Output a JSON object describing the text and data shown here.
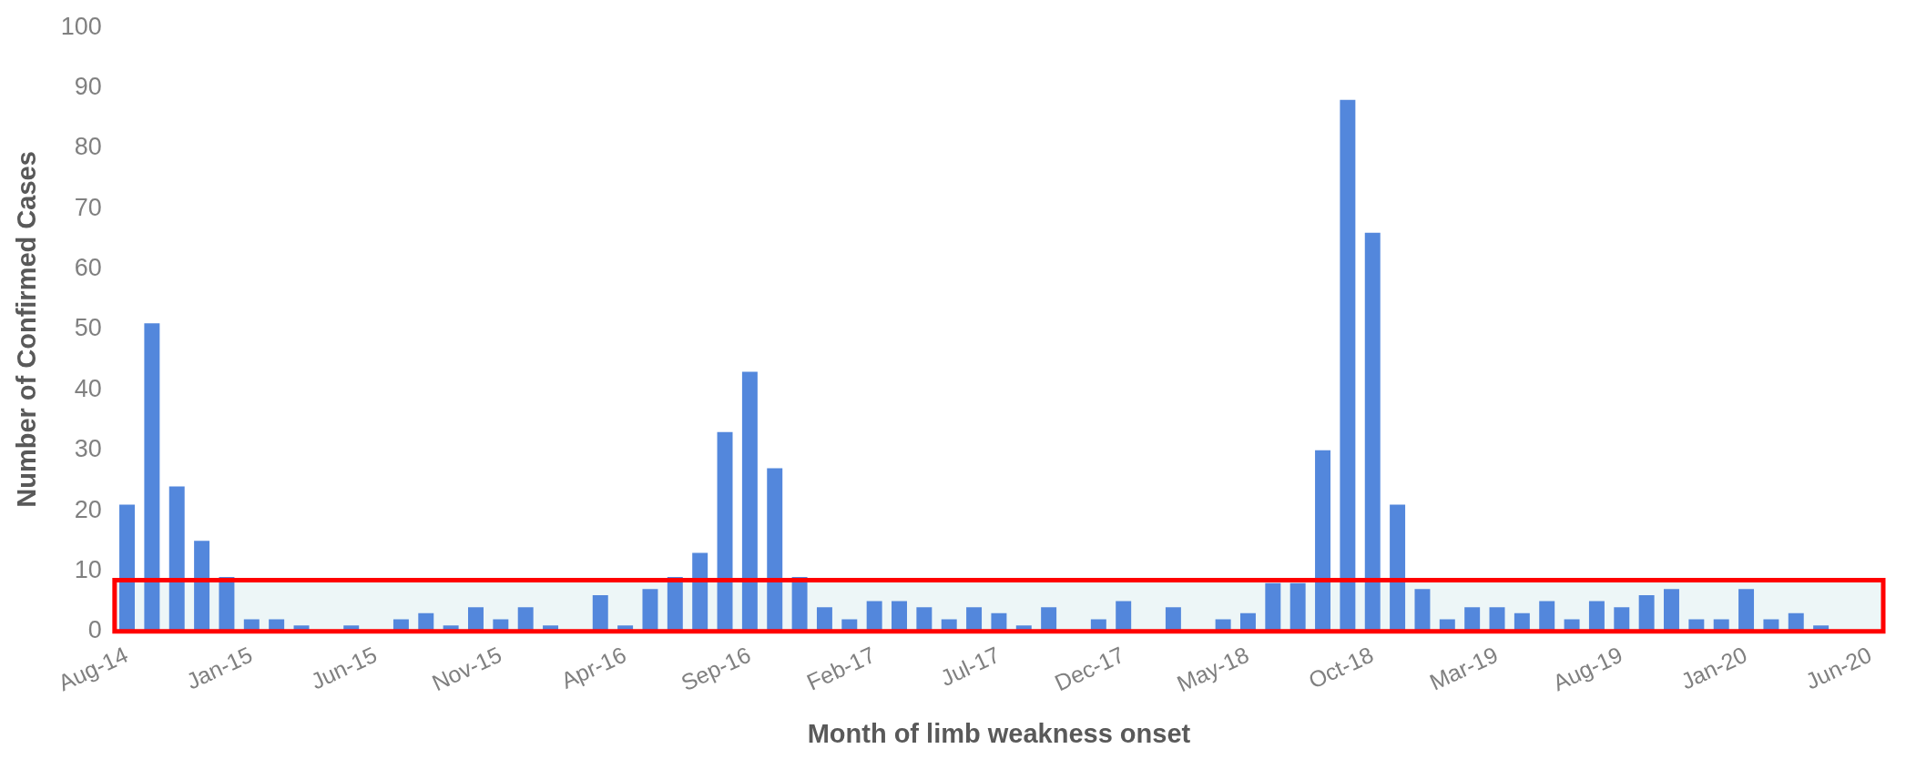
{
  "chart_data": {
    "type": "bar",
    "xlabel": "Month of limb weakness onset",
    "ylabel": "Number of Confirmed Cases",
    "categories": [
      "Aug-14",
      null,
      null,
      null,
      null,
      "Jan-15",
      null,
      null,
      null,
      null,
      "Jun-15",
      null,
      null,
      null,
      null,
      "Nov-15",
      null,
      null,
      null,
      null,
      "Apr-16",
      null,
      null,
      null,
      null,
      "Sep-16",
      null,
      null,
      null,
      null,
      "Feb-17",
      null,
      null,
      null,
      null,
      "Jul-17",
      null,
      null,
      null,
      null,
      "Dec-17",
      null,
      null,
      null,
      null,
      "May-18",
      null,
      null,
      null,
      null,
      "Oct-18",
      null,
      null,
      null,
      null,
      "Mar-19",
      null,
      null,
      null,
      null,
      "Aug-19",
      null,
      null,
      null,
      null,
      "Jan-20",
      null,
      null,
      null,
      null,
      "Jun-20"
    ],
    "values": [
      21,
      51,
      24,
      15,
      9,
      2,
      2,
      1,
      0,
      1,
      0,
      2,
      3,
      1,
      4,
      2,
      4,
      1,
      0,
      6,
      1,
      7,
      9,
      13,
      33,
      43,
      27,
      9,
      4,
      2,
      5,
      5,
      4,
      2,
      4,
      3,
      1,
      4,
      0,
      2,
      5,
      0,
      4,
      0,
      2,
      3,
      8,
      8,
      30,
      88,
      66,
      21,
      7,
      2,
      4,
      4,
      3,
      5,
      2,
      5,
      4,
      6,
      7,
      2,
      2,
      7,
      2,
      3,
      1,
      0,
      0
    ],
    "color": "#5387dc",
    "ylim": [
      0,
      100
    ],
    "yticks": [
      0,
      10,
      20,
      30,
      40,
      50,
      60,
      70,
      80,
      90,
      100
    ],
    "grid": false,
    "legend": false,
    "bands": [
      {
        "axis": "y",
        "from": 0,
        "to": 8.5,
        "color": "#edf6f7"
      }
    ]
  }
}
